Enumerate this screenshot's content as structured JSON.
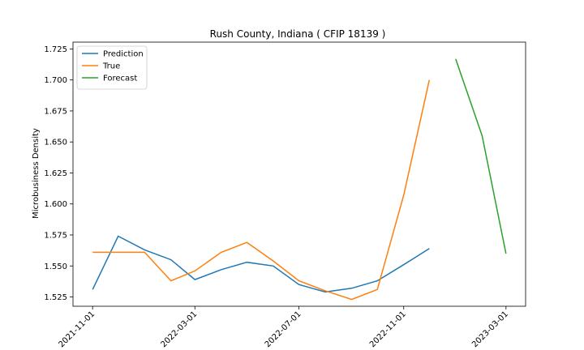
{
  "chart_data": {
    "type": "line",
    "title": "Rush County, Indiana ( CFIP 18139 )",
    "xlabel": "",
    "ylabel": "Microbusiness Density",
    "legend_position": "top-left",
    "grid": false,
    "x_ticks": [
      "2021-11-01",
      "2022-03-01",
      "2022-07-01",
      "2022-11-01",
      "2023-03-01"
    ],
    "y_ticks": [
      "1.525",
      "1.550",
      "1.575",
      "1.600",
      "1.625",
      "1.650",
      "1.675",
      "1.700",
      "1.725"
    ],
    "xlim": [
      "2021-10-09",
      "2023-03-24"
    ],
    "ylim": [
      1.5175,
      1.7305
    ],
    "series": [
      {
        "name": "Prediction",
        "color": "#1f77b4",
        "x": [
          "2021-11-01",
          "2021-12-01",
          "2022-01-01",
          "2022-02-01",
          "2022-03-01",
          "2022-04-01",
          "2022-05-01",
          "2022-06-01",
          "2022-07-01",
          "2022-08-01",
          "2022-09-01",
          "2022-10-01",
          "2022-11-01",
          "2022-12-01"
        ],
        "y": [
          1.531,
          1.574,
          1.563,
          1.555,
          1.539,
          1.547,
          1.553,
          1.55,
          1.535,
          1.529,
          1.532,
          1.538,
          1.551,
          1.564
        ]
      },
      {
        "name": "True",
        "color": "#ff7f0e",
        "x": [
          "2021-11-01",
          "2021-12-01",
          "2022-01-01",
          "2022-02-01",
          "2022-03-01",
          "2022-04-01",
          "2022-05-01",
          "2022-06-01",
          "2022-07-01",
          "2022-08-01",
          "2022-09-01",
          "2022-10-01",
          "2022-11-01",
          "2022-12-01"
        ],
        "y": [
          1.561,
          1.561,
          1.561,
          1.538,
          1.546,
          1.561,
          1.569,
          1.554,
          1.538,
          1.53,
          1.523,
          1.531,
          1.607,
          1.7
        ]
      },
      {
        "name": "Forecast",
        "color": "#2ca02c",
        "x": [
          "2023-01-01",
          "2023-02-01",
          "2023-03-01"
        ],
        "y": [
          1.717,
          1.655,
          1.56
        ]
      }
    ]
  }
}
